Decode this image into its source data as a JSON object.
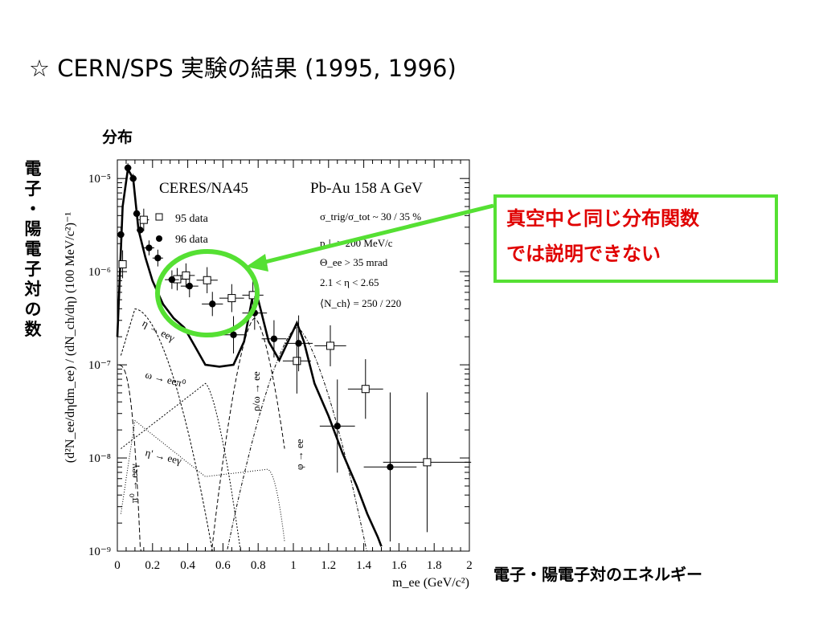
{
  "title": "☆ CERN/SPS 実験の結果 (1995, 1996)",
  "labels": {
    "distribution": "分布",
    "y_axis_jp": [
      "電",
      "子",
      "・",
      "陽",
      "電",
      "子",
      "対",
      "の",
      "数"
    ],
    "x_axis_jp": "電子・陽電子対のエネルギー"
  },
  "callout": {
    "line1": "真空中と同じ分布関数",
    "line2": "では説明できない"
  },
  "colors": {
    "highlight": "#55e033",
    "callout_text": "#e00000"
  },
  "chart_data": {
    "type": "scatter",
    "experiment": "CERES/NA45",
    "system": "Pb-Au 158 A GeV",
    "xlabel": "m_ee (GeV/c²)",
    "ylabel": "(d²N_ee/dηdm_ee) / (dN_ch/dη) (100 MeV/c²)⁻¹",
    "xlim": [
      0,
      2
    ],
    "ylim_log10": [
      -9,
      -4.8
    ],
    "y_scale": "log",
    "x_ticks": [
      "0",
      "0.2",
      "0.4",
      "0.6",
      "0.8",
      "1",
      "1.2",
      "1.4",
      "1.6",
      "1.8",
      "2"
    ],
    "y_ticks": [
      "10⁻⁵",
      "10⁻⁶",
      "10⁻⁷",
      "10⁻⁸",
      "10⁻⁹"
    ],
    "legend": [
      "95 data",
      "96 data"
    ],
    "legend_position": "top-left",
    "conditions": [
      "σ_trig/σ_tot ~ 30 / 35 %",
      "p⊥ > 200 MeV/c",
      "Θ_ee > 35 mrad",
      "2.1 < η < 2.65",
      "⟨N_ch⟩ = 250 / 220"
    ],
    "components": [
      "η → eeγ",
      "ω → eeπ⁰",
      "η' → eeγ",
      "π⁰ → eeγ",
      "ρ/ω → ee",
      "φ → ee"
    ],
    "series": [
      {
        "name": "95 data",
        "marker": "open-square",
        "points": [
          {
            "x": 0.03,
            "y": 1.2e-06,
            "xerr": 0.02,
            "yerr": 0.15
          },
          {
            "x": 0.15,
            "y": 3.6e-06,
            "xerr": 0.03,
            "yerr": 0.12
          },
          {
            "x": 0.34,
            "y": 8.3e-07,
            "xerr": 0.05,
            "yerr": 0.12
          },
          {
            "x": 0.39,
            "y": 9.1e-07,
            "xerr": 0.05,
            "yerr": 0.13
          },
          {
            "x": 0.51,
            "y": 8.1e-07,
            "xerr": 0.06,
            "yerr": 0.14
          },
          {
            "x": 0.65,
            "y": 5.2e-07,
            "xerr": 0.07,
            "yerr": 0.15
          },
          {
            "x": 0.77,
            "y": 5.6e-07,
            "xerr": 0.06,
            "yerr": 0.15
          },
          {
            "x": 1.02,
            "y": 1.1e-07,
            "xerr": 0.08,
            "yerr": 0.35
          },
          {
            "x": 1.21,
            "y": 1.6e-07,
            "xerr": 0.09,
            "yerr": 0.22
          },
          {
            "x": 1.41,
            "y": 5.5e-08,
            "xerr": 0.1,
            "yerr": 0.32
          },
          {
            "x": 1.76,
            "y": 9e-09,
            "xerr": 0.25,
            "yerr": 0.75
          }
        ]
      },
      {
        "name": "96 data",
        "marker": "filled-circle",
        "points": [
          {
            "x": 0.02,
            "y": 2.5e-06,
            "xerr": 0.02,
            "yerr": 0.08
          },
          {
            "x": 0.06,
            "y": 1.3e-05,
            "xerr": 0.02,
            "yerr": 0.05
          },
          {
            "x": 0.09,
            "y": 1e-05,
            "xerr": 0.02,
            "yerr": 0.05
          },
          {
            "x": 0.11,
            "y": 4.2e-06,
            "xerr": 0.02,
            "yerr": 0.06
          },
          {
            "x": 0.13,
            "y": 2.8e-06,
            "xerr": 0.02,
            "yerr": 0.07
          },
          {
            "x": 0.18,
            "y": 1.8e-06,
            "xerr": 0.03,
            "yerr": 0.08
          },
          {
            "x": 0.23,
            "y": 1.4e-06,
            "xerr": 0.03,
            "yerr": 0.09
          },
          {
            "x": 0.31,
            "y": 8.2e-07,
            "xerr": 0.04,
            "yerr": 0.1
          },
          {
            "x": 0.41,
            "y": 7e-07,
            "xerr": 0.05,
            "yerr": 0.12
          },
          {
            "x": 0.54,
            "y": 4.5e-07,
            "xerr": 0.06,
            "yerr": 0.13
          },
          {
            "x": 0.66,
            "y": 2.1e-07,
            "xerr": 0.07,
            "yerr": 0.2
          },
          {
            "x": 0.78,
            "y": 3.6e-07,
            "xerr": 0.07,
            "yerr": 0.18
          },
          {
            "x": 0.89,
            "y": 1.9e-07,
            "xerr": 0.07,
            "yerr": 0.2
          },
          {
            "x": 1.03,
            "y": 1.7e-07,
            "xerr": 0.08,
            "yerr": 0.3
          },
          {
            "x": 1.25,
            "y": 2.2e-08,
            "xerr": 0.1,
            "yerr": 0.5
          },
          {
            "x": 1.55,
            "y": 8e-09,
            "xerr": 0.15,
            "yerr": 0.8
          }
        ]
      }
    ]
  }
}
